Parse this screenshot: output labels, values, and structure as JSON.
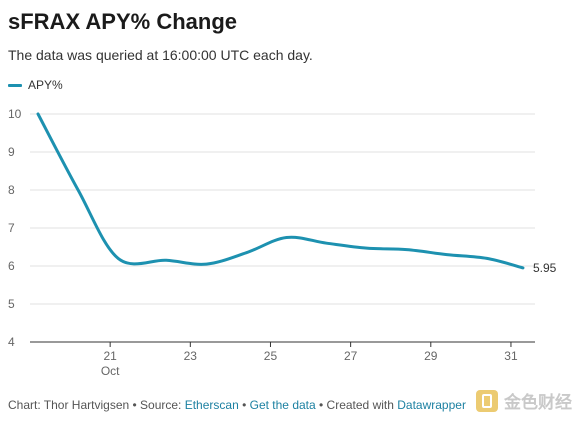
{
  "chart_data": {
    "type": "line",
    "title": "sFRAX APY% Change",
    "subtitle": "The data was queried at 16:00:00 UTC each day.",
    "xlabel": "",
    "ylabel": "",
    "x_ticks": [
      {
        "day": 21,
        "label": "21",
        "sublabel": "Oct"
      },
      {
        "day": 23,
        "label": "23",
        "sublabel": ""
      },
      {
        "day": 25,
        "label": "25",
        "sublabel": ""
      },
      {
        "day": 27,
        "label": "27",
        "sublabel": ""
      },
      {
        "day": 29,
        "label": "29",
        "sublabel": ""
      },
      {
        "day": 31,
        "label": "31",
        "sublabel": ""
      }
    ],
    "xlim": [
      19,
      31.6
    ],
    "ylim": [
      4,
      10
    ],
    "y_ticks": [
      4,
      5,
      6,
      7,
      8,
      9,
      10
    ],
    "grid": true,
    "legend_position": "top-left",
    "series": [
      {
        "name": "APY%",
        "color": "#1d91b0",
        "x": [
          19.2,
          20.2,
          21.2,
          22.4,
          23.4,
          24.4,
          25.4,
          26.4,
          27.4,
          28.4,
          29.4,
          30.4,
          31.3
        ],
        "values": [
          10.0,
          8.0,
          6.2,
          6.15,
          6.05,
          6.35,
          6.75,
          6.6,
          6.47,
          6.43,
          6.3,
          6.2,
          5.95
        ],
        "end_label": "5.95"
      }
    ]
  },
  "footer": {
    "prefix": "Chart: Thor Hartvigsen • Source: ",
    "source": "Etherscan",
    "sep1": " • ",
    "get_data": "Get the data",
    "sep2": " • Created with ",
    "tool": "Datawrapper"
  },
  "watermark": {
    "text": "金色财经",
    "logo_icon": "jinse-logo-icon"
  }
}
